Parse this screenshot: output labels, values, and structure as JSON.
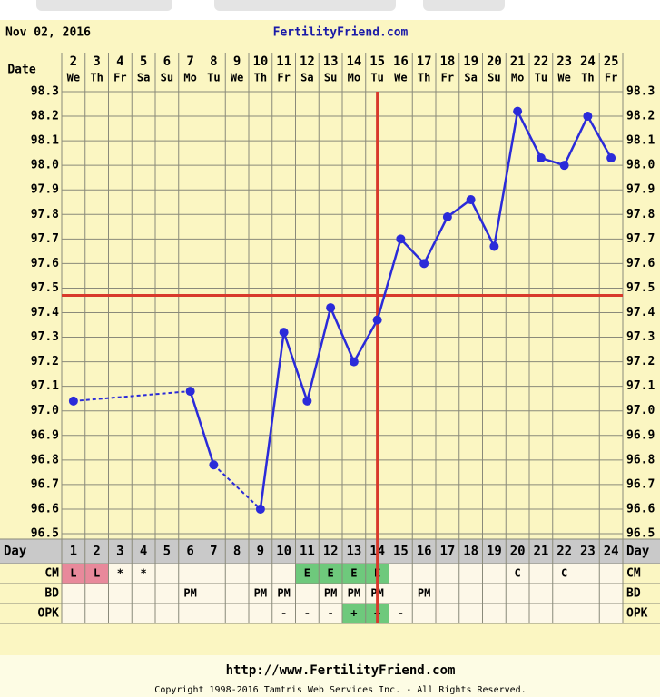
{
  "header": {
    "date": "Nov 02, 2016",
    "site": "FertilityFriend.com"
  },
  "chart_data": {
    "type": "line",
    "date_label": "Date",
    "dates": [
      {
        "day": "2",
        "weekday": "We"
      },
      {
        "day": "3",
        "weekday": "Th"
      },
      {
        "day": "4",
        "weekday": "Fr"
      },
      {
        "day": "5",
        "weekday": "Sa"
      },
      {
        "day": "6",
        "weekday": "Su"
      },
      {
        "day": "7",
        "weekday": "Mo"
      },
      {
        "day": "8",
        "weekday": "Tu"
      },
      {
        "day": "9",
        "weekday": "We"
      },
      {
        "day": "10",
        "weekday": "Th"
      },
      {
        "day": "11",
        "weekday": "Fr"
      },
      {
        "day": "12",
        "weekday": "Sa"
      },
      {
        "day": "13",
        "weekday": "Su"
      },
      {
        "day": "14",
        "weekday": "Mo"
      },
      {
        "day": "15",
        "weekday": "Tu"
      },
      {
        "day": "16",
        "weekday": "We"
      },
      {
        "day": "17",
        "weekday": "Th"
      },
      {
        "day": "18",
        "weekday": "Fr"
      },
      {
        "day": "19",
        "weekday": "Sa"
      },
      {
        "day": "20",
        "weekday": "Su"
      },
      {
        "day": "21",
        "weekday": "Mo"
      },
      {
        "day": "22",
        "weekday": "Tu"
      },
      {
        "day": "23",
        "weekday": "We"
      },
      {
        "day": "24",
        "weekday": "Th"
      },
      {
        "day": "25",
        "weekday": "Fr"
      }
    ],
    "day_label": "Day",
    "categories": [
      1,
      2,
      3,
      4,
      5,
      6,
      7,
      8,
      9,
      10,
      11,
      12,
      13,
      14,
      15,
      16,
      17,
      18,
      19,
      20,
      21,
      22,
      23,
      24
    ],
    "series": [
      {
        "color": "#2b2bd9",
        "values": [
          97.04,
          null,
          null,
          null,
          null,
          97.08,
          96.78,
          null,
          96.6,
          97.32,
          97.04,
          97.42,
          97.2,
          97.37,
          97.7,
          97.6,
          97.79,
          97.86,
          97.67,
          98.22,
          98.03,
          98.0,
          98.2,
          98.03
        ]
      }
    ],
    "ylim": [
      96.5,
      98.3
    ],
    "yticks": [
      96.5,
      96.6,
      96.7,
      96.8,
      96.9,
      {
        "value": 97,
        "label": "97.0"
      },
      97.1,
      97.2,
      97.3,
      97.4,
      97.5,
      97.6,
      97.7,
      97.8,
      97.9,
      {
        "value": 98,
        "label": "98.0"
      },
      98.1,
      98.2,
      98.3
    ],
    "grid": true,
    "coverline": 97.47,
    "ovulation_day": 14,
    "reference_color": "#d8392b",
    "rows": [
      {
        "label": "CM",
        "cells": [
          "L",
          "L",
          "*",
          "*",
          null,
          null,
          null,
          null,
          null,
          null,
          "E",
          "E",
          "E",
          "E",
          null,
          null,
          null,
          null,
          null,
          "C",
          null,
          "C",
          null,
          null
        ],
        "cell_colors": [
          "#e8899b",
          "#e8899b",
          null,
          null,
          null,
          null,
          null,
          null,
          null,
          null,
          "#6ec97c",
          "#6ec97c",
          "#6ec97c",
          "#6ec97c",
          null,
          null,
          null,
          null,
          null,
          null,
          null,
          null,
          null,
          null
        ]
      },
      {
        "label": "BD",
        "cells": [
          null,
          null,
          null,
          null,
          null,
          "PM",
          null,
          null,
          "PM",
          "PM",
          null,
          "PM",
          "PM",
          "PM",
          null,
          "PM",
          null,
          null,
          null,
          null,
          null,
          null,
          null,
          null
        ]
      },
      {
        "label": "OPK",
        "cells": [
          null,
          null,
          null,
          null,
          null,
          null,
          null,
          null,
          null,
          "-",
          "-",
          "-",
          "+",
          "+",
          "-",
          null,
          null,
          null,
          null,
          null,
          null,
          null,
          null,
          null
        ],
        "cell_colors": [
          null,
          null,
          null,
          null,
          null,
          null,
          null,
          null,
          null,
          null,
          null,
          null,
          "#6ec97c",
          "#6ec97c",
          null,
          null,
          null,
          null,
          null,
          null,
          null,
          null,
          null,
          null
        ]
      }
    ]
  },
  "footer": {
    "url": "http://www.FertilityFriend.com",
    "copyright": "Copyright 1998-2016 Tamtris Web Services Inc. - All Rights Reserved."
  }
}
